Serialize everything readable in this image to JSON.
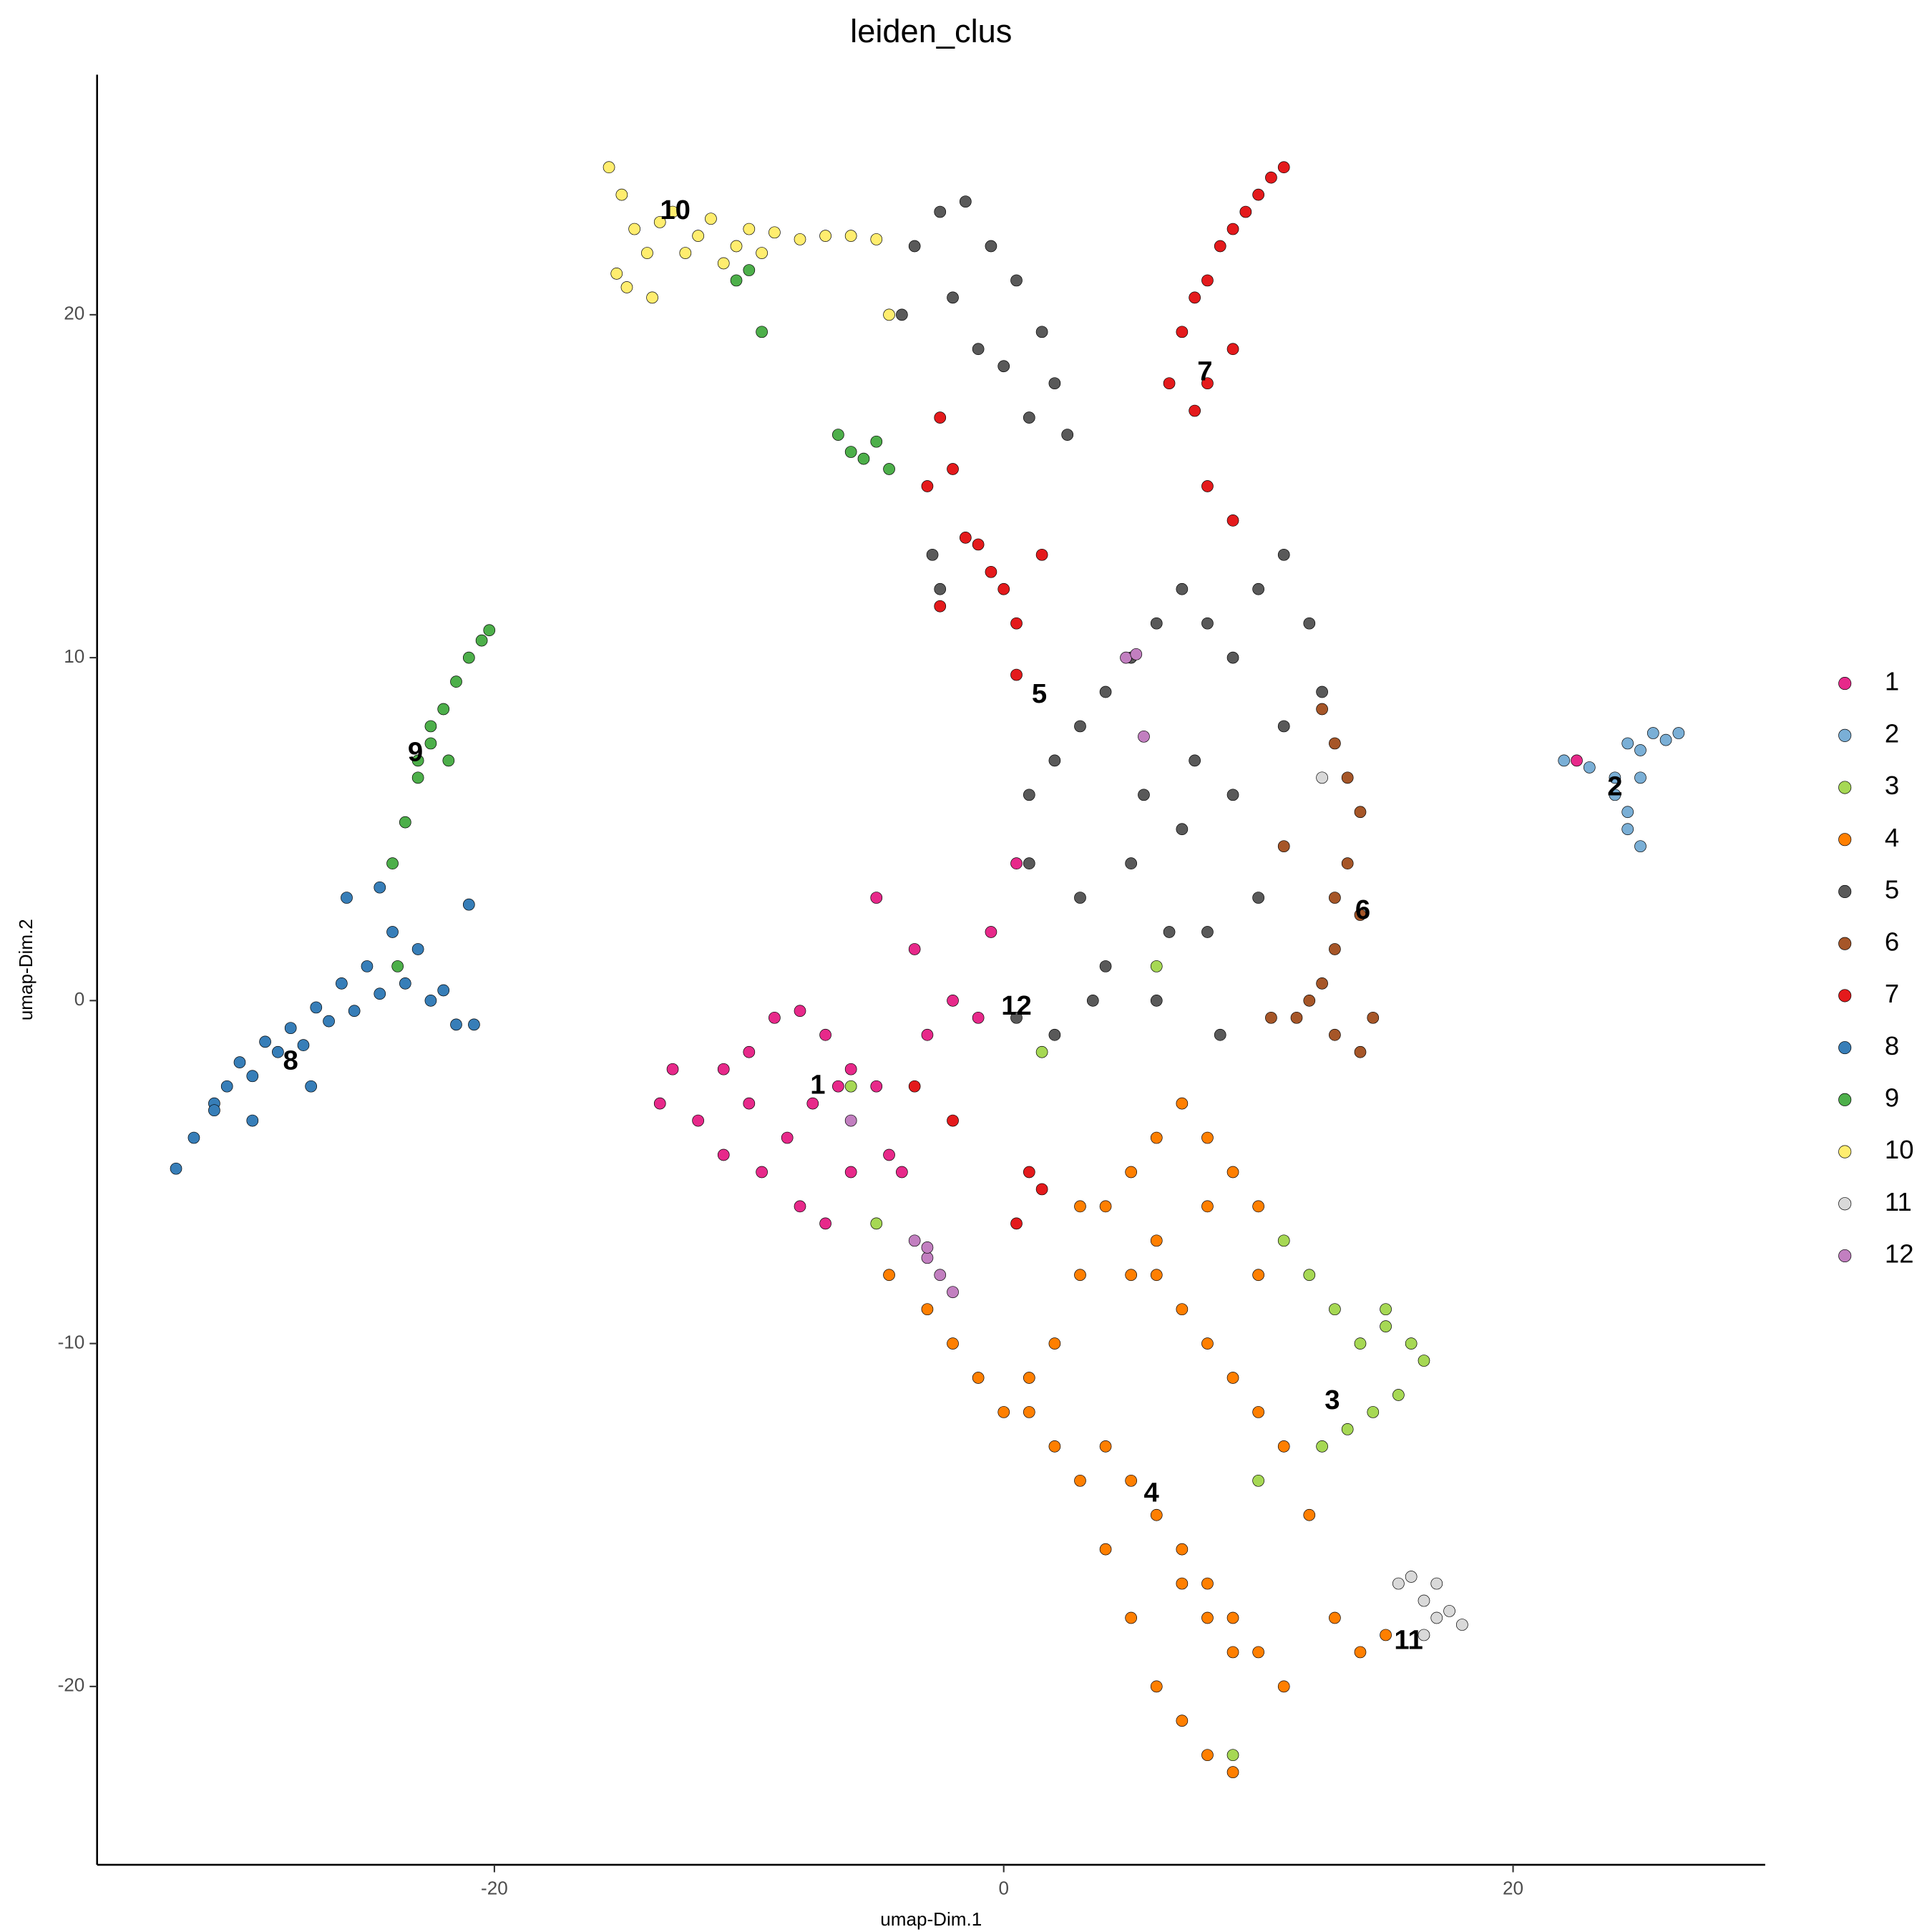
{
  "chart_data": {
    "type": "scatter",
    "title": "leiden_clus",
    "x_label": "umap-Dim.1",
    "y_label": "umap-Dim.2",
    "xlim": [
      -35.6,
      29.9
    ],
    "ylim": [
      -25.2,
      27
    ],
    "xticks": [
      -20,
      0,
      20
    ],
    "yticks": [
      -20,
      -10,
      0,
      10,
      20
    ],
    "grid": false,
    "legend": "right",
    "series": [
      {
        "name": "1",
        "color": "#e7298a",
        "x": [
          -13.5,
          -13,
          -12,
          -11,
          -10,
          -9,
          -8,
          -7,
          -6,
          -5,
          -4.5,
          -11,
          -9.5,
          -8,
          -7,
          -6,
          -8.5,
          -10,
          -7.5,
          -6.5,
          -4,
          -3,
          -2,
          -1,
          -0.5,
          -5,
          -3.5,
          0.5,
          22.5
        ],
        "y": [
          -3,
          -2,
          -3.5,
          -2,
          -1.5,
          -0.5,
          -0.3,
          -1,
          -2,
          -2.5,
          -4.5,
          -4.5,
          -5,
          -6,
          -6.5,
          -5,
          -4,
          -3,
          -3,
          -2.5,
          -5,
          -1,
          0,
          -0.5,
          2,
          3,
          1.5,
          4,
          7
        ]
      },
      {
        "name": "2",
        "color": "#7aafd6",
        "x": [
          22,
          23,
          24,
          24.5,
          25,
          25.5,
          26,
          26.5,
          24.5,
          25,
          24,
          24.5,
          25
        ],
        "y": [
          7,
          6.8,
          6.5,
          7.5,
          7.3,
          7.8,
          7.6,
          7.8,
          5,
          4.5,
          6,
          5.5,
          6.5
        ]
      },
      {
        "name": "3",
        "color": "#a6d854",
        "x": [
          11,
          12,
          13,
          14,
          15,
          16,
          16.5,
          15.5,
          14.5,
          13.5,
          12.5,
          15,
          10,
          -5,
          -6,
          1.5,
          9,
          6
        ],
        "y": [
          -7,
          -8,
          -9,
          -10,
          -9.5,
          -10,
          -10.5,
          -11.5,
          -12,
          -12.5,
          -13,
          -9,
          -14,
          -6.5,
          -2.5,
          -1.5,
          -22,
          1
        ]
      },
      {
        "name": "4",
        "color": "#ff7f00",
        "x": [
          -4.5,
          -3,
          -2,
          -1,
          0,
          1,
          2,
          3,
          4,
          5,
          6,
          7,
          8,
          9,
          10,
          4,
          5,
          6,
          7,
          8,
          9,
          10,
          11,
          5,
          6,
          7,
          8,
          9,
          4,
          3,
          2,
          1,
          6,
          7,
          8,
          9,
          10,
          11,
          12,
          13,
          14,
          15,
          7,
          8,
          9,
          5,
          6,
          8,
          10,
          3
        ],
        "y": [
          -8,
          -9,
          -10,
          -11,
          -12,
          -11,
          -10,
          -8,
          -6,
          -5,
          -4,
          -3,
          -4,
          -5,
          -6,
          -13,
          -14,
          -15,
          -16,
          -17,
          -18,
          -19,
          -20,
          -18,
          -20,
          -21,
          -22,
          -22.5,
          -16,
          -14,
          -13,
          -12,
          -8,
          -9,
          -10,
          -11,
          -12,
          -13,
          -15,
          -18,
          -19,
          -18.5,
          -17,
          -18,
          -19,
          -8,
          -7,
          -6,
          -8,
          -6
        ]
      },
      {
        "name": "5",
        "color": "#595959",
        "x": [
          -3.5,
          -2.5,
          -1.5,
          -0.5,
          0.5,
          1.5,
          2,
          -2,
          -1,
          0,
          1,
          2.5,
          -4,
          -2.5,
          -2.8,
          1,
          2,
          3,
          4,
          5,
          6,
          7,
          8,
          9,
          10,
          11,
          12,
          12.5,
          11,
          9,
          7,
          5,
          3,
          4,
          6,
          8,
          10,
          1,
          2,
          0.5,
          3.5,
          6.5,
          8.5,
          5.5,
          7.5
        ],
        "y": [
          22,
          23,
          23.3,
          22,
          21,
          19.5,
          18,
          20.5,
          19,
          18.5,
          17,
          16.5,
          20,
          12,
          13,
          6,
          7,
          8,
          9,
          10,
          11,
          12,
          11,
          10,
          12,
          13,
          11,
          9,
          8,
          6,
          5,
          4,
          3,
          1,
          0,
          2,
          3,
          4,
          -1,
          -0.5,
          0,
          2,
          -1,
          6,
          7
        ]
      },
      {
        "name": "6",
        "color": "#a65628",
        "x": [
          12.5,
          13,
          13.5,
          14,
          13.5,
          14,
          13,
          12.5,
          11.5,
          10.5,
          12,
          13,
          14,
          14.5,
          13,
          11
        ],
        "y": [
          8.5,
          7.5,
          6.5,
          5.5,
          4,
          2.5,
          1.5,
          0.5,
          -0.5,
          -0.5,
          0,
          -1,
          -1.5,
          -0.5,
          3,
          4.5
        ]
      },
      {
        "name": "7",
        "color": "#e41a1c",
        "x": [
          6.5,
          7,
          7.5,
          8,
          8.5,
          9,
          9.5,
          10,
          10.5,
          11,
          8,
          7.5,
          9,
          -2.5,
          -2,
          -3,
          -1.5,
          -1,
          -0.5,
          0,
          0.5,
          1.5,
          -2.5,
          0.5,
          1,
          0.5,
          1.5,
          -2,
          -3.5,
          8,
          9
        ],
        "y": [
          18,
          19.5,
          20.5,
          21,
          22,
          22.5,
          23,
          23.5,
          24,
          24.3,
          18,
          17.2,
          19,
          17,
          15.5,
          15,
          13.5,
          13.3,
          12.5,
          12,
          11,
          13,
          11.5,
          9.5,
          -5,
          -6.5,
          -5.5,
          -3.5,
          -2.5,
          15,
          14
        ]
      },
      {
        "name": "8",
        "color": "#377eb8",
        "x": [
          -32.5,
          -31.8,
          -31,
          -30.5,
          -30,
          -29.5,
          -29,
          -28.5,
          -28,
          -27.5,
          -27,
          -26.5,
          -26,
          -25.5,
          -25,
          -24.5,
          -24,
          -23.5,
          -23,
          -22.5,
          -22,
          -21.5,
          -21,
          -20.8,
          -24.5,
          -25.8,
          -27.2,
          -29.5,
          -31
        ],
        "y": [
          -4.9,
          -4,
          -3,
          -2.5,
          -1.8,
          -2.2,
          -1.2,
          -1.5,
          -0.8,
          -1.3,
          -0.2,
          -0.6,
          0.5,
          -0.3,
          1,
          0.2,
          2,
          0.5,
          1.5,
          0,
          0.3,
          -0.7,
          2.8,
          -0.7,
          3.3,
          3,
          -2.5,
          -3.5,
          -3.2
        ]
      },
      {
        "name": "9",
        "color": "#4daf4a",
        "x": [
          -24,
          -23.5,
          -23,
          -22.5,
          -22,
          -21.5,
          -21,
          -20.5,
          -20.2,
          -22.5,
          -23,
          -21.8,
          -23.8,
          -10.5,
          -10,
          -9.5,
          -6.5,
          -6,
          -5.5,
          -5,
          -4.5
        ],
        "y": [
          4,
          5.2,
          6.5,
          7.5,
          8.5,
          9.3,
          10,
          10.5,
          10.8,
          8,
          7,
          7,
          1,
          21,
          21.3,
          19.5,
          16.5,
          16,
          15.8,
          16.3,
          15.5
        ]
      },
      {
        "name": "10",
        "color": "#ffed6f",
        "x": [
          -15.5,
          -15,
          -14.5,
          -14,
          -13.5,
          -13,
          -12.5,
          -12,
          -11.5,
          -11,
          -10.5,
          -10,
          -9.5,
          -9,
          -8,
          -7,
          -6,
          -5,
          -4.5,
          -14.8,
          -13.8,
          -15.2
        ],
        "y": [
          24.3,
          23.5,
          22.5,
          21.8,
          22.7,
          23,
          21.8,
          22.3,
          22.8,
          21.5,
          22,
          22.5,
          21.8,
          22.4,
          22.2,
          22.3,
          22.3,
          22.2,
          20,
          20.8,
          20.5,
          21.2
        ]
      },
      {
        "name": "11",
        "color": "#d9d9d9",
        "x": [
          15.5,
          16,
          16.5,
          17,
          17.5,
          18,
          16.5,
          17,
          12.5
        ],
        "y": [
          -17,
          -16.8,
          -17.5,
          -18,
          -17.8,
          -18.2,
          -18.5,
          -17,
          6.5
        ]
      },
      {
        "name": "12",
        "color": "#c27fc0",
        "x": [
          -3.5,
          -3,
          -2.5,
          -2,
          -3,
          4.8,
          5.2,
          5.5,
          -6
        ],
        "y": [
          -7,
          -7.5,
          -8,
          -8.5,
          -7.2,
          10,
          10.1,
          7.7,
          -3.5
        ]
      }
    ],
    "annotations": [
      {
        "text": "1",
        "x": -7.3,
        "y": -2.5
      },
      {
        "text": "2",
        "x": 24.0,
        "y": 6.2
      },
      {
        "text": "3",
        "x": 12.9,
        "y": -11.7
      },
      {
        "text": "4",
        "x": 5.8,
        "y": -14.4
      },
      {
        "text": "5",
        "x": 1.4,
        "y": 8.9
      },
      {
        "text": "6",
        "x": 14.1,
        "y": 2.6
      },
      {
        "text": "7",
        "x": 7.9,
        "y": 18.3
      },
      {
        "text": "8",
        "x": -28.0,
        "y": -1.8
      },
      {
        "text": "9",
        "x": -23.1,
        "y": 7.2
      },
      {
        "text": "10",
        "x": -12.9,
        "y": 23.0
      },
      {
        "text": "11",
        "x": 15.9,
        "y": -18.7
      },
      {
        "text": "12",
        "x": 0.5,
        "y": -0.2
      }
    ]
  }
}
